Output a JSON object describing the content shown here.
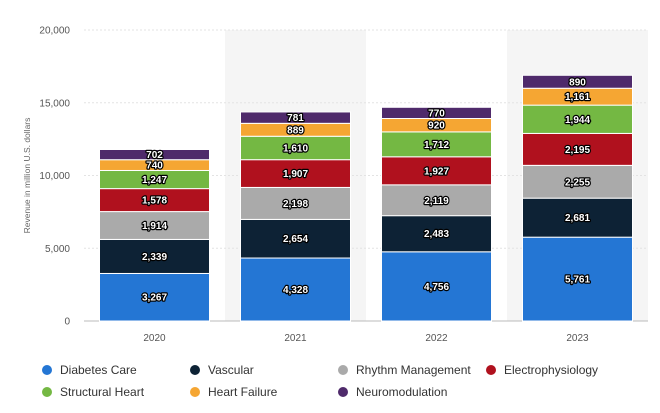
{
  "chart_data": {
    "type": "bar",
    "stacked": true,
    "categories": [
      "2020",
      "2021",
      "2022",
      "2023"
    ],
    "ylabel": "Revenue in million U.S. dollars",
    "xlabel": "",
    "ylim": [
      0,
      20000
    ],
    "yticks": [
      "0",
      "5,000",
      "10,000",
      "15,000",
      "20,000"
    ],
    "ytick_values": [
      0,
      5000,
      10000,
      15000,
      20000
    ],
    "grid": true,
    "legend_position": "bottom",
    "series": [
      {
        "name": "Diabetes Care",
        "color": "#2476d4",
        "values": [
          3267,
          4328,
          4756,
          5761
        ],
        "labels": [
          "3,267",
          "4,328",
          "4,756",
          "5,761"
        ]
      },
      {
        "name": "Vascular",
        "color": "#0d2235",
        "values": [
          2339,
          2654,
          2483,
          2681
        ],
        "labels": [
          "2,339",
          "2,654",
          "2,483",
          "2,681"
        ]
      },
      {
        "name": "Rhythm Management",
        "color": "#aaaaaa",
        "values": [
          1914,
          2198,
          2119,
          2255
        ],
        "labels": [
          "1,914",
          "2,198",
          "2,119",
          "2,255"
        ]
      },
      {
        "name": "Electrophysiology",
        "color": "#b0111e",
        "values": [
          1578,
          1907,
          1927,
          2195
        ],
        "labels": [
          "1,578",
          "1,907",
          "1,927",
          "2,195"
        ]
      },
      {
        "name": "Structural Heart",
        "color": "#74b843",
        "values": [
          1247,
          1610,
          1712,
          1944
        ],
        "labels": [
          "1,247",
          "1,610",
          "1,712",
          "1,944"
        ]
      },
      {
        "name": "Heart Failure",
        "color": "#f5a633",
        "values": [
          740,
          889,
          920,
          1161
        ],
        "labels": [
          "740",
          "889",
          "920",
          "1,161"
        ]
      },
      {
        "name": "Neuromodulation",
        "color": "#4f2a6b",
        "values": [
          702,
          781,
          770,
          890
        ],
        "labels": [
          "702",
          "781",
          "770",
          "890"
        ]
      }
    ]
  }
}
